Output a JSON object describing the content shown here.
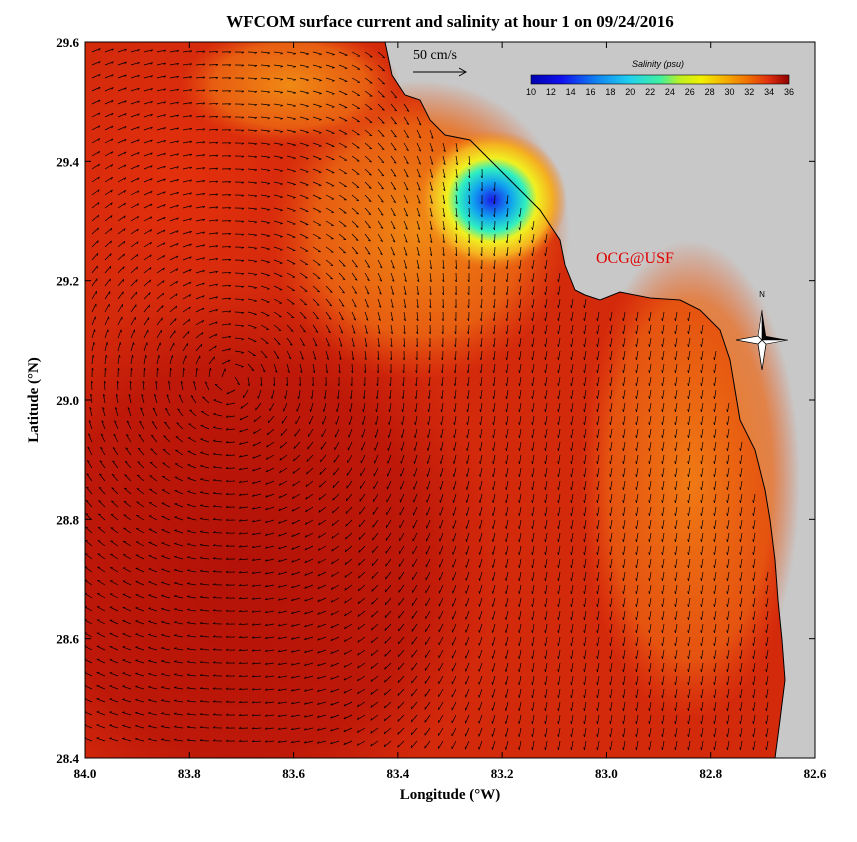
{
  "title": "WFCOM surface current and salinity at hour 1 on 09/24/2016",
  "x_axis": {
    "label": "Longitude (°W)",
    "ticks": [
      "84.0",
      "83.8",
      "83.6",
      "83.4",
      "83.2",
      "83.0",
      "82.8",
      "82.6"
    ]
  },
  "y_axis": {
    "label": "Latitude (°N)",
    "ticks": [
      "29.6",
      "29.4",
      "29.2",
      "29.0",
      "28.8",
      "28.6",
      "28.4"
    ]
  },
  "scale_arrow_label": "50 cm/s",
  "colorbar": {
    "title": "Salinity (psu)",
    "ticks": [
      "10",
      "12",
      "14",
      "16",
      "18",
      "20",
      "22",
      "24",
      "26",
      "28",
      "30",
      "32",
      "34",
      "36"
    ]
  },
  "credit": "OCG@USF",
  "compass_label": "N",
  "colors": {
    "land": "#c8c8c8",
    "credit": "#e00000",
    "salinity_high": "#c81e0a",
    "salinity_low": "#2020e0"
  }
}
